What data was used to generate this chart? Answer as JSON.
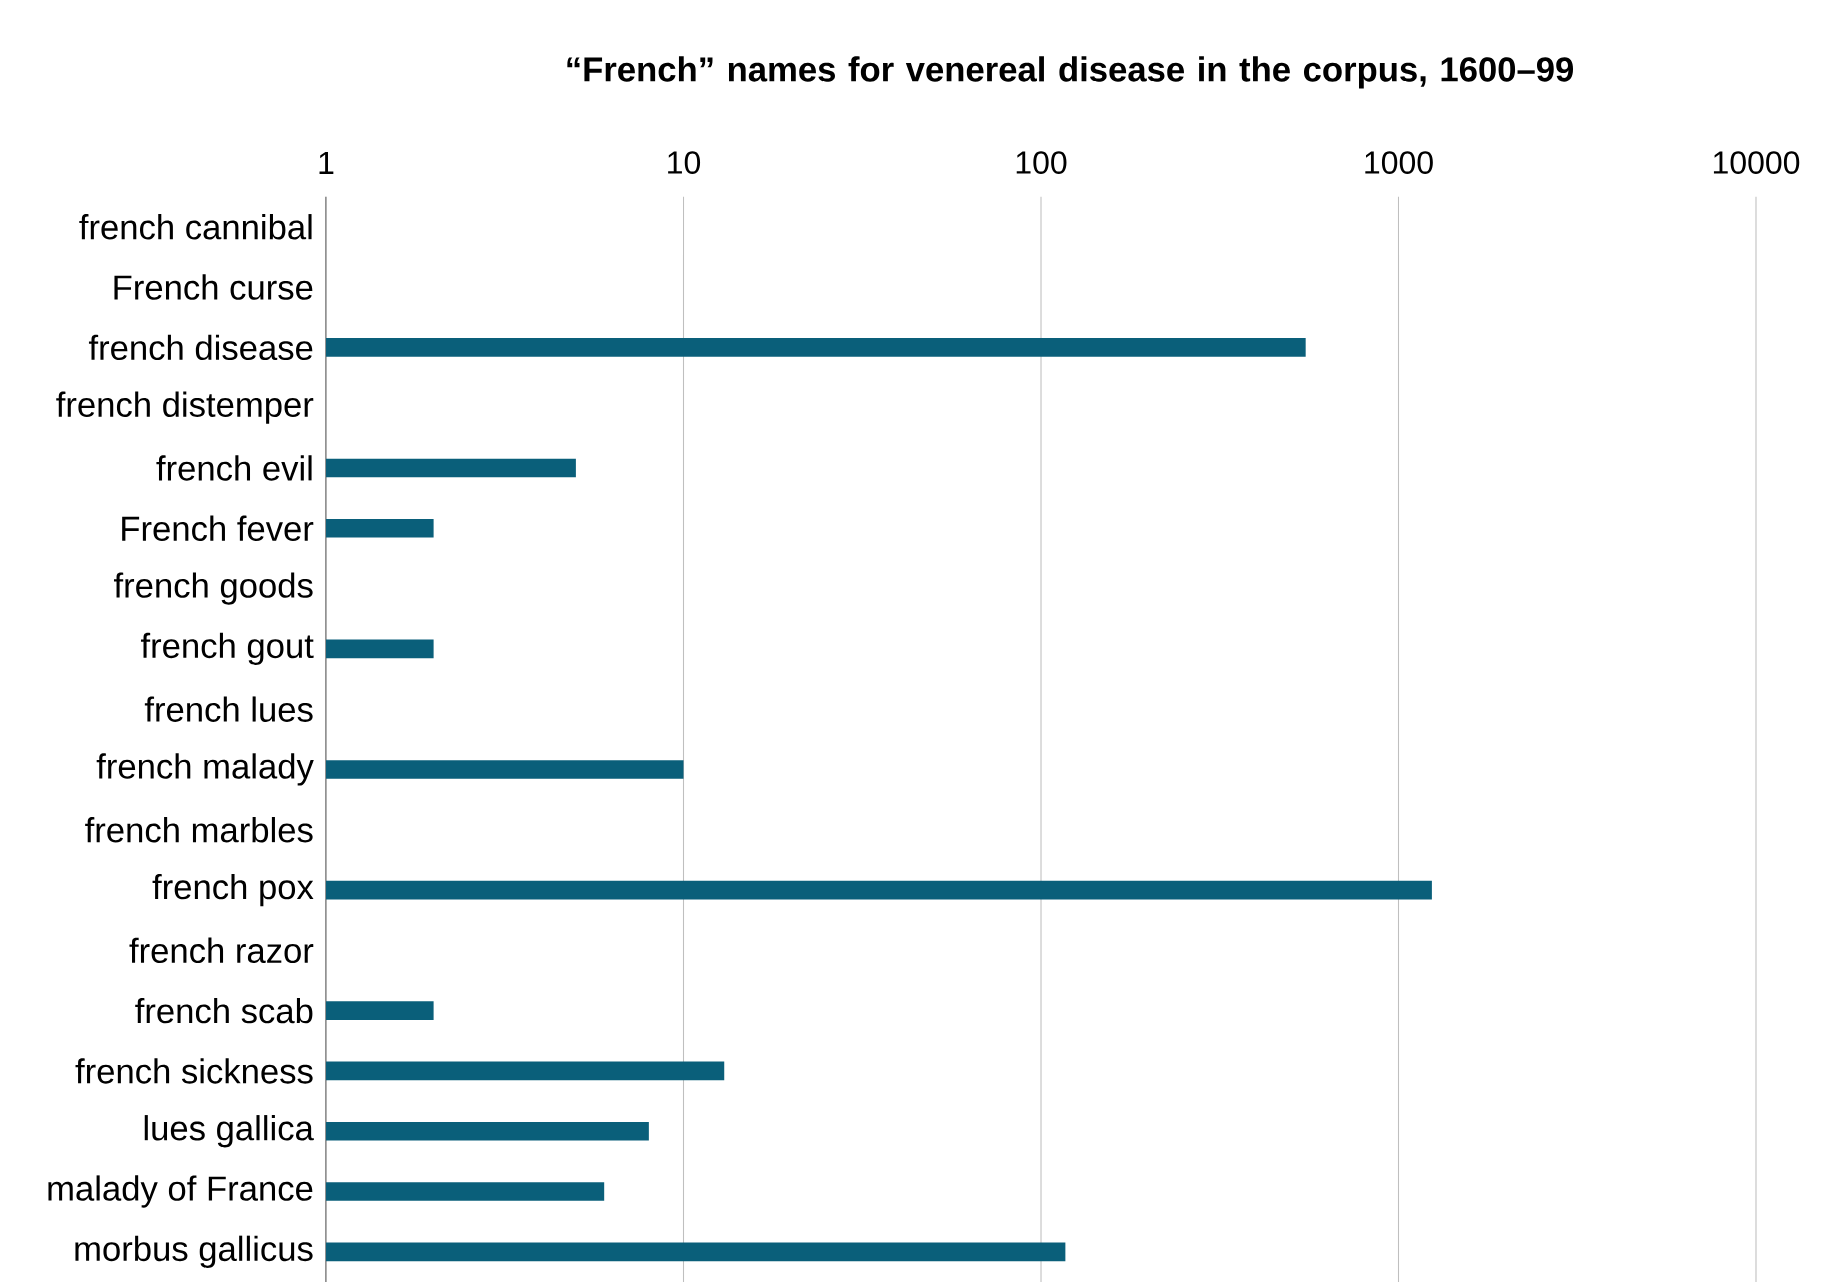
{
  "chart_data": {
    "type": "bar",
    "orientation": "horizontal",
    "title": "“French” names for venereal disease in the corpus, 1600–99",
    "categories": [
      "french cannibal",
      "French curse",
      "french disease",
      "french distemper",
      "french evil",
      "French fever",
      "french goods",
      "french gout",
      "french lues",
      "french malady",
      "french marbles",
      "french pox",
      "french razor",
      "french scab",
      "french sickness",
      "lues gallica",
      "malady of France",
      "morbus gallicus"
    ],
    "values": [
      null,
      null,
      550,
      null,
      5,
      2,
      null,
      2,
      null,
      10,
      null,
      1240,
      null,
      2,
      13,
      8,
      6,
      117
    ],
    "color": "#0a5f7a",
    "log": "x",
    "xlim": [
      1,
      10000
    ],
    "xticks": [
      1,
      10,
      100,
      1000,
      10000
    ],
    "grid": "x"
  }
}
